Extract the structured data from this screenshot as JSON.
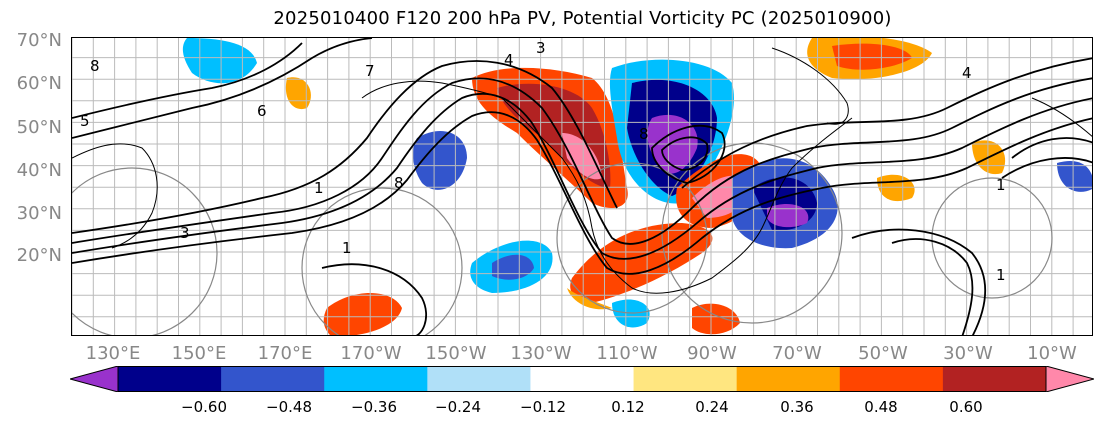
{
  "title": "2025010400 F120 200 hPa PV, Potential Vorticity PC (2025010900)",
  "lat_labels": [
    "70°N",
    "60°N",
    "50°N",
    "40°N",
    "30°N",
    "20°N"
  ],
  "lon_labels": [
    "130°E",
    "150°E",
    "170°E",
    "170°W",
    "150°W",
    "130°W",
    "110°W",
    "90°W",
    "70°W",
    "50°W",
    "30°W",
    "10°W"
  ],
  "colorbar": {
    "ticks": [
      "−0.60",
      "−0.48",
      "−0.36",
      "−0.24",
      "−0.12",
      "0.12",
      "0.24",
      "0.36",
      "0.48",
      "0.60"
    ],
    "colors": [
      "#9932cc",
      "#00008b",
      "#3355cc",
      "#00bfff",
      "#b0e0f8",
      "#ffffff",
      "#ffe680",
      "#ffa500",
      "#ff4500",
      "#b22222",
      "#ff88aa"
    ]
  },
  "contour_labels": [
    "3",
    "4",
    "8",
    "7",
    "6",
    "5",
    "3",
    "8",
    "1",
    "1",
    "1",
    "4",
    "1",
    "8"
  ]
}
